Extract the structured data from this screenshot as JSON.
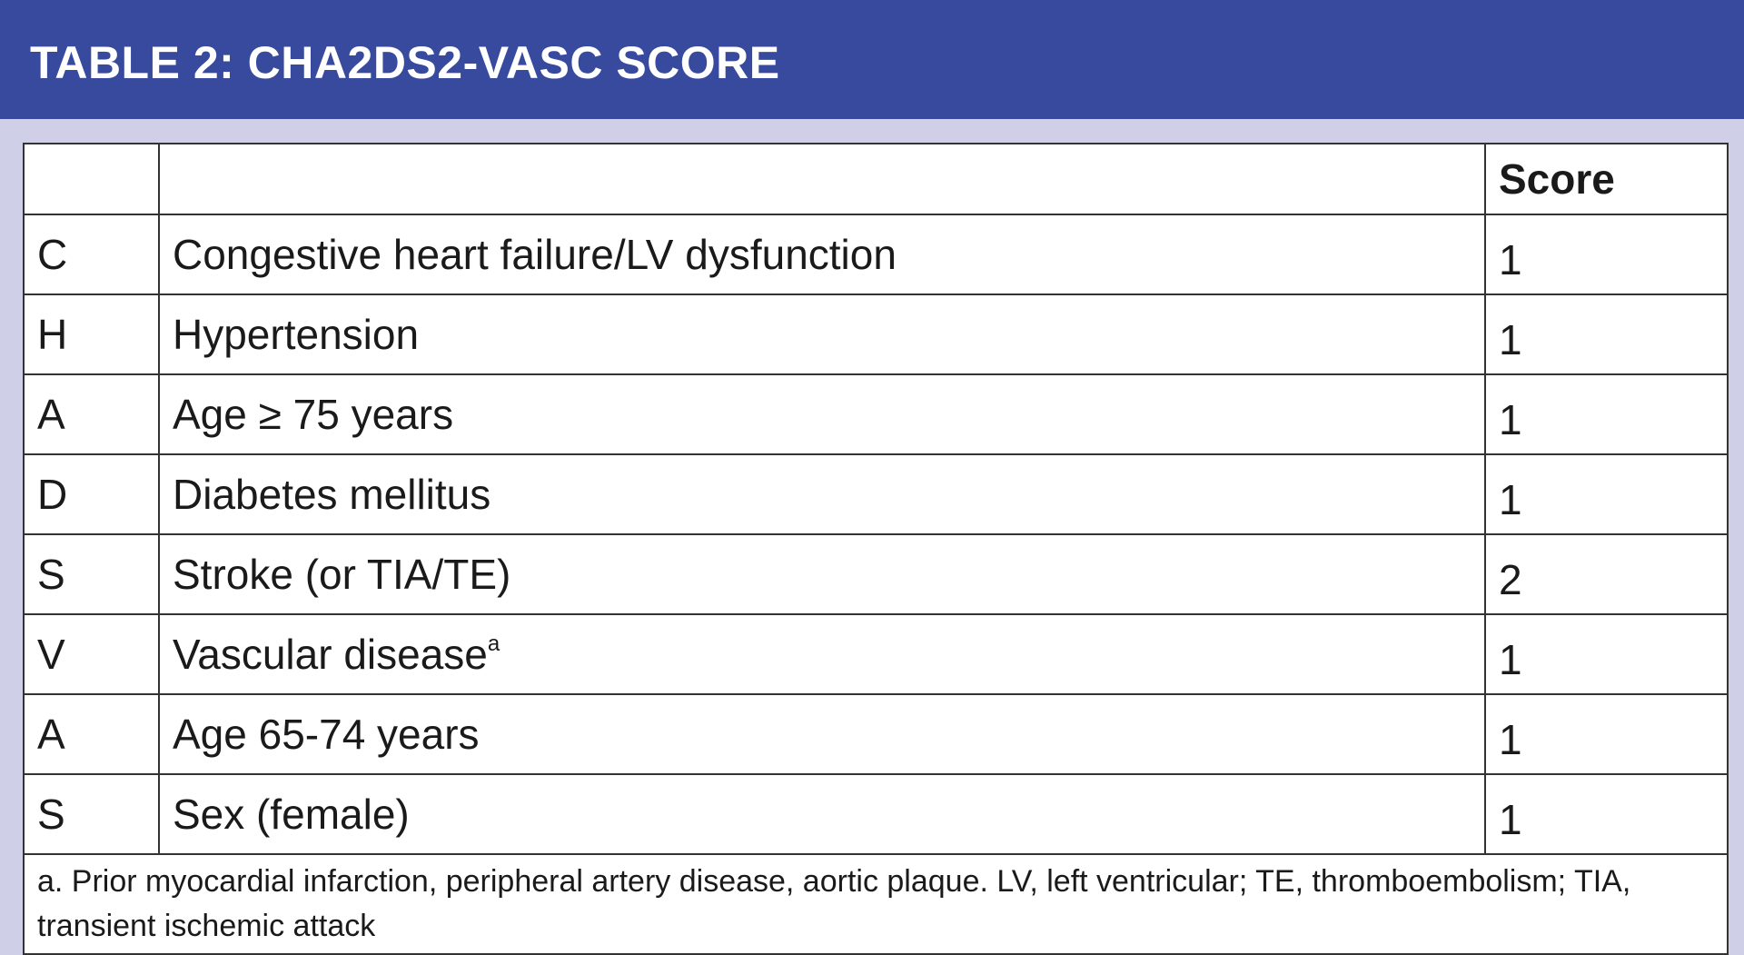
{
  "header": {
    "title": "TABLE 2: CHA2DS2-VASC SCORE"
  },
  "table": {
    "score_header": "Score",
    "rows": [
      {
        "letter": "C",
        "factor": "Congestive heart failure/LV dysfunction",
        "score": 1
      },
      {
        "letter": "H",
        "factor": "Hypertension",
        "score": 1
      },
      {
        "letter": "A",
        "factor": "Age ≥ 75 years",
        "score": 1
      },
      {
        "letter": "D",
        "factor": "Diabetes mellitus",
        "score": 1
      },
      {
        "letter": "S",
        "factor": "Stroke (or TIA/TE)",
        "score": 2
      },
      {
        "letter": "V",
        "factor": "Vascular disease",
        "note": "a",
        "score": 1
      },
      {
        "letter": "A",
        "factor": "Age 65-74 years",
        "score": 1
      },
      {
        "letter": "S",
        "factor": "Sex (female)",
        "score": 1
      }
    ],
    "footnote": "a. Prior myocardial infarction, peripheral artery disease, aortic plaque. LV, left ventricular; TE, thromboembolism; TIA, transient ischemic attack"
  }
}
